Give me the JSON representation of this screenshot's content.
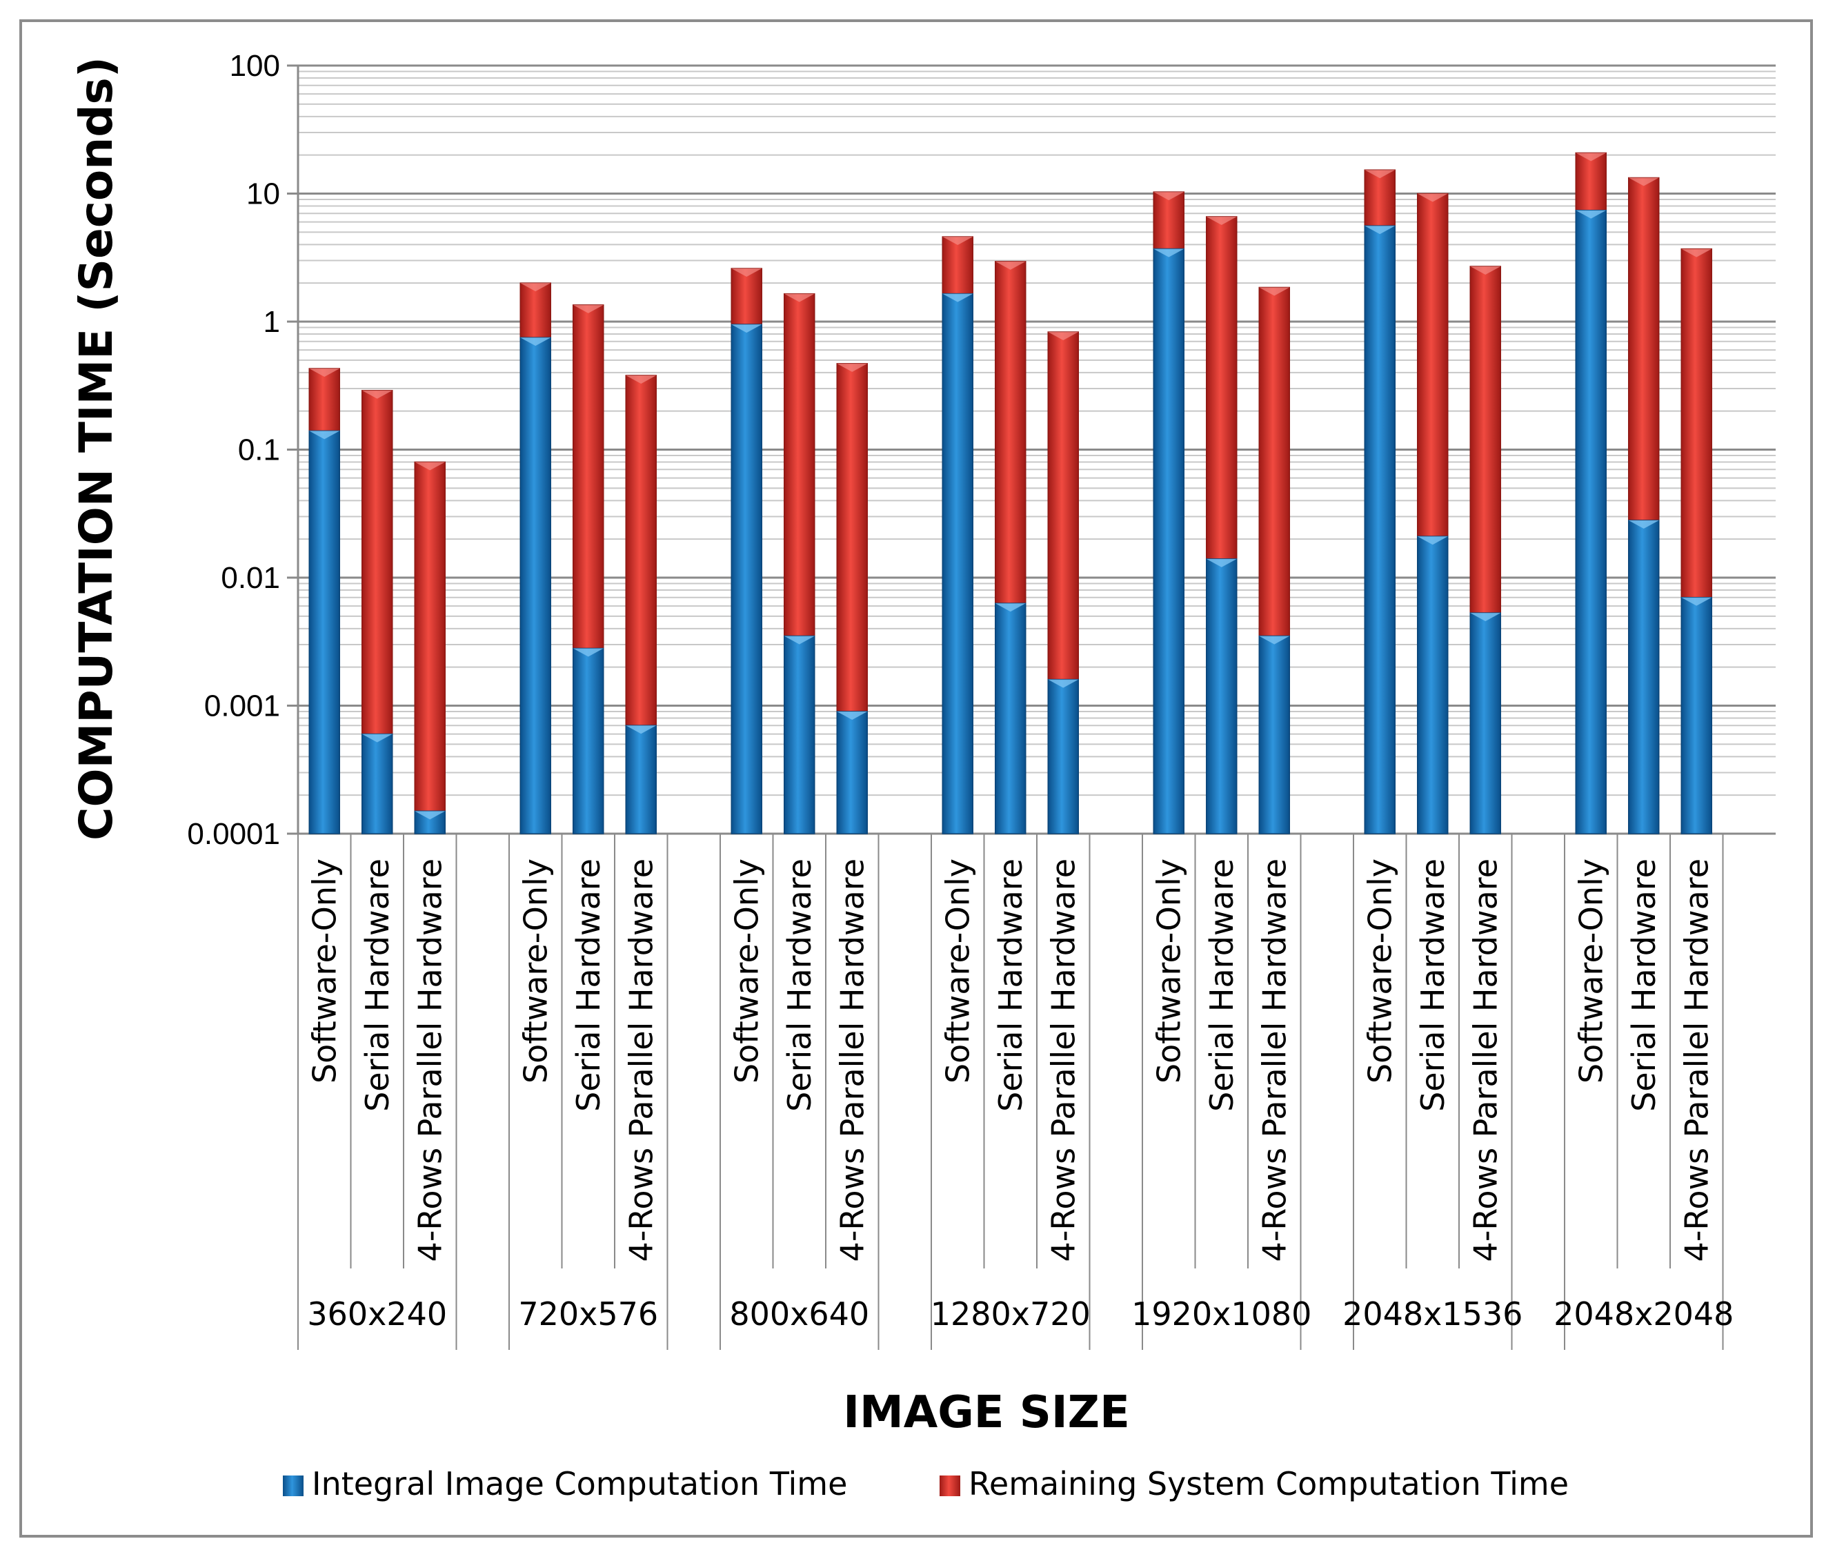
{
  "chart_data": {
    "type": "bar",
    "stacked": true,
    "yscale": "log",
    "ylabel": "COMPUTATION TIME (Seconds)",
    "xlabel": "IMAGE SIZE",
    "ylim": [
      0.0001,
      100
    ],
    "yticks": [
      "100",
      "10",
      "1",
      "0.1",
      "0.01",
      "0.001",
      "0.0001"
    ],
    "grid": true,
    "legend_position": "bottom",
    "groups": [
      {
        "label": "360x240",
        "bars": [
          {
            "category": "Software-Only",
            "integral": 0.14,
            "total": 0.43
          },
          {
            "category": "Serial Hardware",
            "integral": 0.0006,
            "total": 0.29
          },
          {
            "category": "4-Rows Parallel Hardware",
            "integral": 0.00015,
            "total": 0.08
          }
        ]
      },
      {
        "label": "720x576",
        "bars": [
          {
            "category": "Software-Only",
            "integral": 0.75,
            "total": 2.0
          },
          {
            "category": "Serial Hardware",
            "integral": 0.0028,
            "total": 1.35
          },
          {
            "category": "4-Rows Parallel Hardware",
            "integral": 0.0007,
            "total": 0.38
          }
        ]
      },
      {
        "label": "800x640",
        "bars": [
          {
            "category": "Software-Only",
            "integral": 0.95,
            "total": 2.6
          },
          {
            "category": "Serial Hardware",
            "integral": 0.0035,
            "total": 1.65
          },
          {
            "category": "4-Rows Parallel Hardware",
            "integral": 0.0009,
            "total": 0.47
          }
        ]
      },
      {
        "label": "1280x720",
        "bars": [
          {
            "category": "Software-Only",
            "integral": 1.65,
            "total": 4.6
          },
          {
            "category": "Serial Hardware",
            "integral": 0.0063,
            "total": 2.95
          },
          {
            "category": "4-Rows Parallel Hardware",
            "integral": 0.0016,
            "total": 0.83
          }
        ]
      },
      {
        "label": "1920x1080",
        "bars": [
          {
            "category": "Software-Only",
            "integral": 3.7,
            "total": 10.3
          },
          {
            "category": "Serial Hardware",
            "integral": 0.014,
            "total": 6.6
          },
          {
            "category": "4-Rows Parallel Hardware",
            "integral": 0.0035,
            "total": 1.85
          }
        ]
      },
      {
        "label": "2048x1536",
        "bars": [
          {
            "category": "Software-Only",
            "integral": 5.6,
            "total": 15.3
          },
          {
            "category": "Serial Hardware",
            "integral": 0.021,
            "total": 10.0
          },
          {
            "category": "4-Rows Parallel Hardware",
            "integral": 0.0053,
            "total": 2.7
          }
        ]
      },
      {
        "label": "2048x2048",
        "bars": [
          {
            "category": "Software-Only",
            "integral": 7.4,
            "total": 20.8
          },
          {
            "category": "Serial Hardware",
            "integral": 0.028,
            "total": 13.3
          },
          {
            "category": "4-Rows Parallel Hardware",
            "integral": 0.007,
            "total": 3.7
          }
        ]
      }
    ],
    "series": [
      {
        "name": "Integral Image Computation Time",
        "color": "#1a7ac6"
      },
      {
        "name": "Remaining System Computation Time",
        "color": "#e0322c"
      }
    ]
  }
}
